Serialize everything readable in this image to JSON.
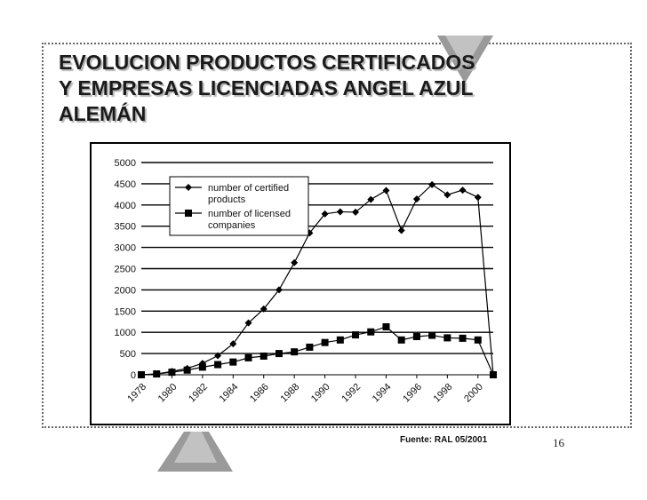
{
  "slide": {
    "title": "EVOLUCION PRODUCTOS CERTIFICADOS\nY EMPRESAS LICENCIADAS ANGEL AZUL\nALEMÁN",
    "source": "Fuente: RAL 05/2001",
    "page_number": "16"
  },
  "colors": {
    "text": "#1a1a1a",
    "arrow_dark": "#8a8a8a",
    "arrow_light": "#c8c8c8"
  },
  "chart_data": {
    "type": "line",
    "title": "",
    "xlabel": "",
    "ylabel": "",
    "x": [
      1978,
      1979,
      1980,
      1981,
      1982,
      1983,
      1984,
      1985,
      1986,
      1987,
      1988,
      1989,
      1990,
      1991,
      1992,
      1993,
      1994,
      1995,
      1996,
      1997,
      1998,
      1999,
      2000,
      2001
    ],
    "x_tick_labels": [
      "1978",
      "1980",
      "1982",
      "1984",
      "1986",
      "1988",
      "1990",
      "1992",
      "1994",
      "1996",
      "1998",
      "2000"
    ],
    "ylim": [
      0,
      5000
    ],
    "y_ticks": [
      0,
      500,
      1000,
      1500,
      2000,
      2500,
      3000,
      3500,
      4000,
      4500,
      5000
    ],
    "grid": "horizontal",
    "legend_position": "top-left",
    "series": [
      {
        "name": "number of certified\nproducts",
        "marker": "diamond",
        "values": [
          0,
          20,
          80,
          150,
          270,
          450,
          730,
          1220,
          1550,
          2000,
          2640,
          3340,
          3790,
          3840,
          3830,
          4130,
          4340,
          3400,
          4140,
          4480,
          4240,
          4350,
          4180,
          0
        ]
      },
      {
        "name": "number of licensed\ncompanies",
        "marker": "square",
        "values": [
          0,
          20,
          60,
          110,
          180,
          240,
          300,
          400,
          440,
          500,
          540,
          650,
          760,
          820,
          940,
          1010,
          1130,
          820,
          900,
          930,
          870,
          860,
          820,
          0
        ]
      }
    ]
  }
}
